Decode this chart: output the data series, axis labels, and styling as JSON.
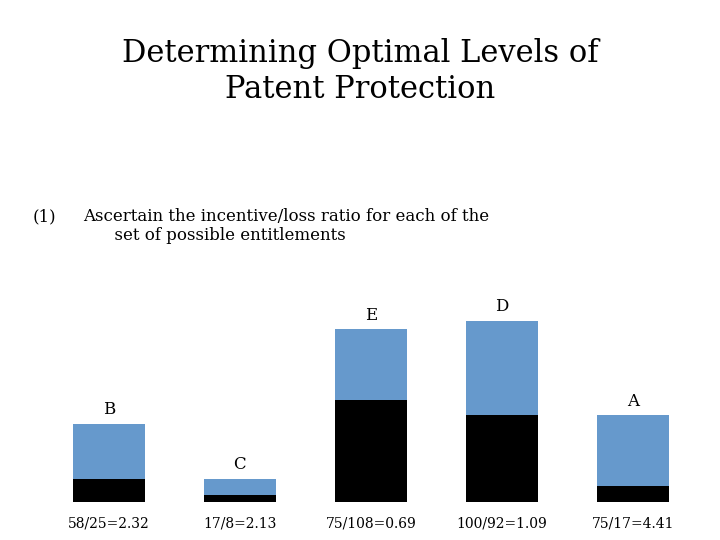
{
  "title": "Determining Optimal Levels of\nPatent Protection",
  "subtitle_num": "(1)",
  "subtitle_text": "Ascertain the incentive/loss ratio for each of the\n      set of possible entitlements",
  "bars": [
    {
      "label": "B",
      "black": 25,
      "blue": 58,
      "ratio_text": "58/25=2.32"
    },
    {
      "label": "C",
      "black": 8,
      "blue": 17,
      "ratio_text": "17/8=2.13"
    },
    {
      "label": "E",
      "black": 108,
      "blue": 75,
      "ratio_text": "75/108=0.69"
    },
    {
      "label": "D",
      "black": 92,
      "blue": 100,
      "ratio_text": "100/92=1.09"
    },
    {
      "label": "A",
      "black": 17,
      "blue": 75,
      "ratio_text": "75/17=4.41"
    }
  ],
  "black_color": "#000000",
  "blue_color": "#6699CC",
  "bg_color": "#FFFFFF",
  "title_fontsize": 22,
  "subtitle_fontsize": 12,
  "label_fontsize": 12,
  "ratio_fontsize": 10
}
